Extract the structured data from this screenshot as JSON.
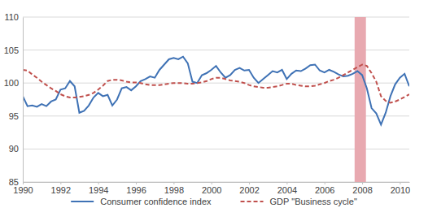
{
  "chart_data": {
    "type": "line",
    "x": [
      1990,
      1990.25,
      1990.5,
      1990.75,
      1991,
      1991.25,
      1991.5,
      1991.75,
      1992,
      1992.25,
      1992.5,
      1992.75,
      1993,
      1993.25,
      1993.5,
      1993.75,
      1994,
      1994.25,
      1994.5,
      1994.75,
      1995,
      1995.25,
      1995.5,
      1995.75,
      1996,
      1996.25,
      1996.5,
      1996.75,
      1997,
      1997.25,
      1997.5,
      1997.75,
      1998,
      1998.25,
      1998.5,
      1998.75,
      1999,
      1999.25,
      1999.5,
      1999.75,
      2000,
      2000.25,
      2000.5,
      2000.75,
      2001,
      2001.25,
      2001.5,
      2001.75,
      2002,
      2002.25,
      2002.5,
      2002.75,
      2003,
      2003.25,
      2003.5,
      2003.75,
      2004,
      2004.25,
      2004.5,
      2004.75,
      2005,
      2005.25,
      2005.5,
      2005.75,
      2006,
      2006.25,
      2006.5,
      2006.75,
      2007,
      2007.25,
      2007.5,
      2007.75,
      2008,
      2008.25,
      2008.5,
      2008.75,
      2009,
      2009.25,
      2009.5,
      2009.75,
      2010,
      2010.25,
      2010.5
    ],
    "series": [
      {
        "name": "Consumer confidence index",
        "color": "#3f72b5",
        "line_style": "solid",
        "values": [
          98.0,
          96.5,
          96.6,
          96.4,
          96.8,
          96.5,
          97.2,
          97.5,
          99.0,
          99.2,
          100.3,
          99.5,
          95.5,
          95.8,
          96.6,
          97.8,
          98.5,
          98.0,
          98.2,
          96.6,
          97.5,
          99.2,
          99.4,
          98.9,
          99.5,
          100.3,
          100.6,
          101.0,
          100.8,
          102.0,
          102.8,
          103.6,
          103.8,
          103.6,
          104.0,
          103.0,
          100.2,
          100.0,
          101.2,
          101.5,
          102.0,
          102.6,
          101.6,
          100.8,
          101.2,
          102.0,
          102.3,
          101.9,
          102.0,
          100.8,
          100.0,
          100.6,
          101.2,
          101.8,
          101.6,
          102.0,
          100.6,
          101.4,
          101.9,
          101.8,
          102.2,
          102.7,
          102.8,
          101.9,
          101.6,
          102.0,
          101.7,
          101.3,
          101.0,
          101.1,
          101.4,
          101.8,
          101.2,
          99.2,
          96.2,
          95.4,
          93.7,
          95.5,
          98.0,
          99.8,
          100.8,
          101.4,
          99.5
        ]
      },
      {
        "name": "GDP \"Business cycle\"",
        "color": "#c0504d",
        "line_style": "dashed",
        "values": [
          102.0,
          101.9,
          101.3,
          100.8,
          100.2,
          99.7,
          99.2,
          98.8,
          98.3,
          98.0,
          97.8,
          97.8,
          97.9,
          98.0,
          98.2,
          98.5,
          99.0,
          99.6,
          100.3,
          100.5,
          100.5,
          100.4,
          100.2,
          100.1,
          100.1,
          100.0,
          99.8,
          99.7,
          99.7,
          99.7,
          99.8,
          99.9,
          100.0,
          100.0,
          100.0,
          99.9,
          99.9,
          100.0,
          100.1,
          100.3,
          100.6,
          100.8,
          100.8,
          100.6,
          100.4,
          100.3,
          100.2,
          100.0,
          99.7,
          99.5,
          99.4,
          99.3,
          99.3,
          99.4,
          99.5,
          99.7,
          99.9,
          99.9,
          99.7,
          99.6,
          99.5,
          99.5,
          99.6,
          99.8,
          100.0,
          100.3,
          100.5,
          100.8,
          101.2,
          101.6,
          102.0,
          102.4,
          102.8,
          102.6,
          101.5,
          100.2,
          98.0,
          97.3,
          97.0,
          97.2,
          97.5,
          97.9,
          98.3
        ]
      }
    ],
    "shaded_regions": [
      {
        "x0": 2007.6,
        "x1": 2008.2,
        "color": "#e8a9b0"
      }
    ],
    "xlim": [
      1990,
      2010.5
    ],
    "xticks": [
      1990,
      1992,
      1994,
      1996,
      1998,
      2000,
      2002,
      2004,
      2006,
      2008,
      2010
    ],
    "ylim": [
      85,
      110
    ],
    "yticks": [
      85,
      90,
      95,
      100,
      105,
      110
    ],
    "grid": true,
    "legend": "bottom"
  }
}
